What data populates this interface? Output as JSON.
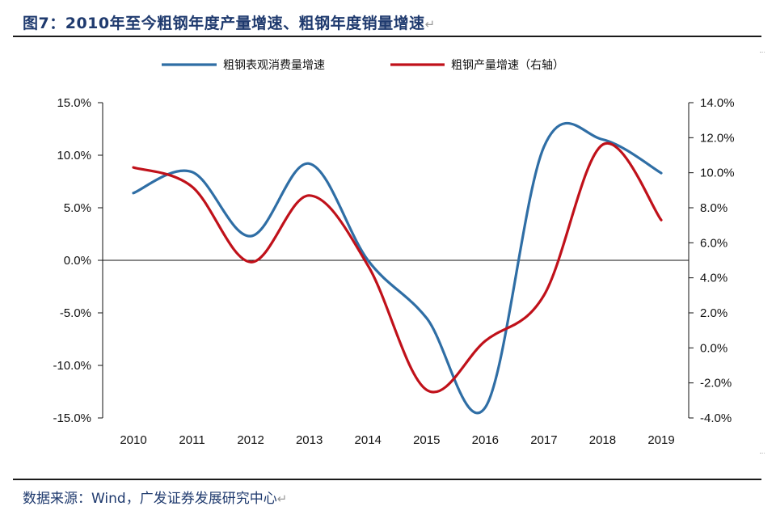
{
  "header": {
    "title": "图7：2010年至今粗钢年度产量增速、粗钢年度销量增速",
    "return_mark": "↵"
  },
  "footer": {
    "source": "数据来源：Wind，广发证券发展研究中心",
    "return_mark": "↵"
  },
  "colors": {
    "consumption": "#2f6ea5",
    "production": "#c0111a",
    "axis": "#111111",
    "title": "#1f3a6e"
  },
  "chart_data": {
    "type": "line",
    "categories": [
      "2010",
      "2011",
      "2012",
      "2013",
      "2014",
      "2015",
      "2016",
      "2017",
      "2018",
      "2019"
    ],
    "series": [
      {
        "name": "粗钢表观消费量增速",
        "axis": "left",
        "values": [
          6.4,
          8.4,
          2.3,
          9.2,
          0.0,
          -5.5,
          -14.0,
          10.8,
          11.5,
          8.3
        ]
      },
      {
        "name": "粗钢产量增速（右轴）",
        "axis": "right",
        "values": [
          10.3,
          9.2,
          4.9,
          8.7,
          4.7,
          -2.4,
          0.4,
          3.0,
          11.6,
          7.3
        ]
      }
    ],
    "y_left": {
      "min": -15,
      "max": 15,
      "ticks": [
        15,
        10,
        5,
        0,
        -5,
        -10,
        -15
      ],
      "tick_labels": [
        "15.0%",
        "10.0%",
        "5.0%",
        "0.0%",
        "-5.0%",
        "-10.0%",
        "-15.0%"
      ]
    },
    "y_right": {
      "min": -4,
      "max": 14,
      "ticks": [
        14,
        12,
        10,
        8,
        6,
        4,
        2,
        0,
        -2,
        -4
      ],
      "tick_labels": [
        "14.0%",
        "12.0%",
        "10.0%",
        "8.0%",
        "6.0%",
        "4.0%",
        "2.0%",
        "0.0%",
        "-2.0%",
        "-4.0%"
      ]
    },
    "legend": "top-center",
    "grid": false
  }
}
